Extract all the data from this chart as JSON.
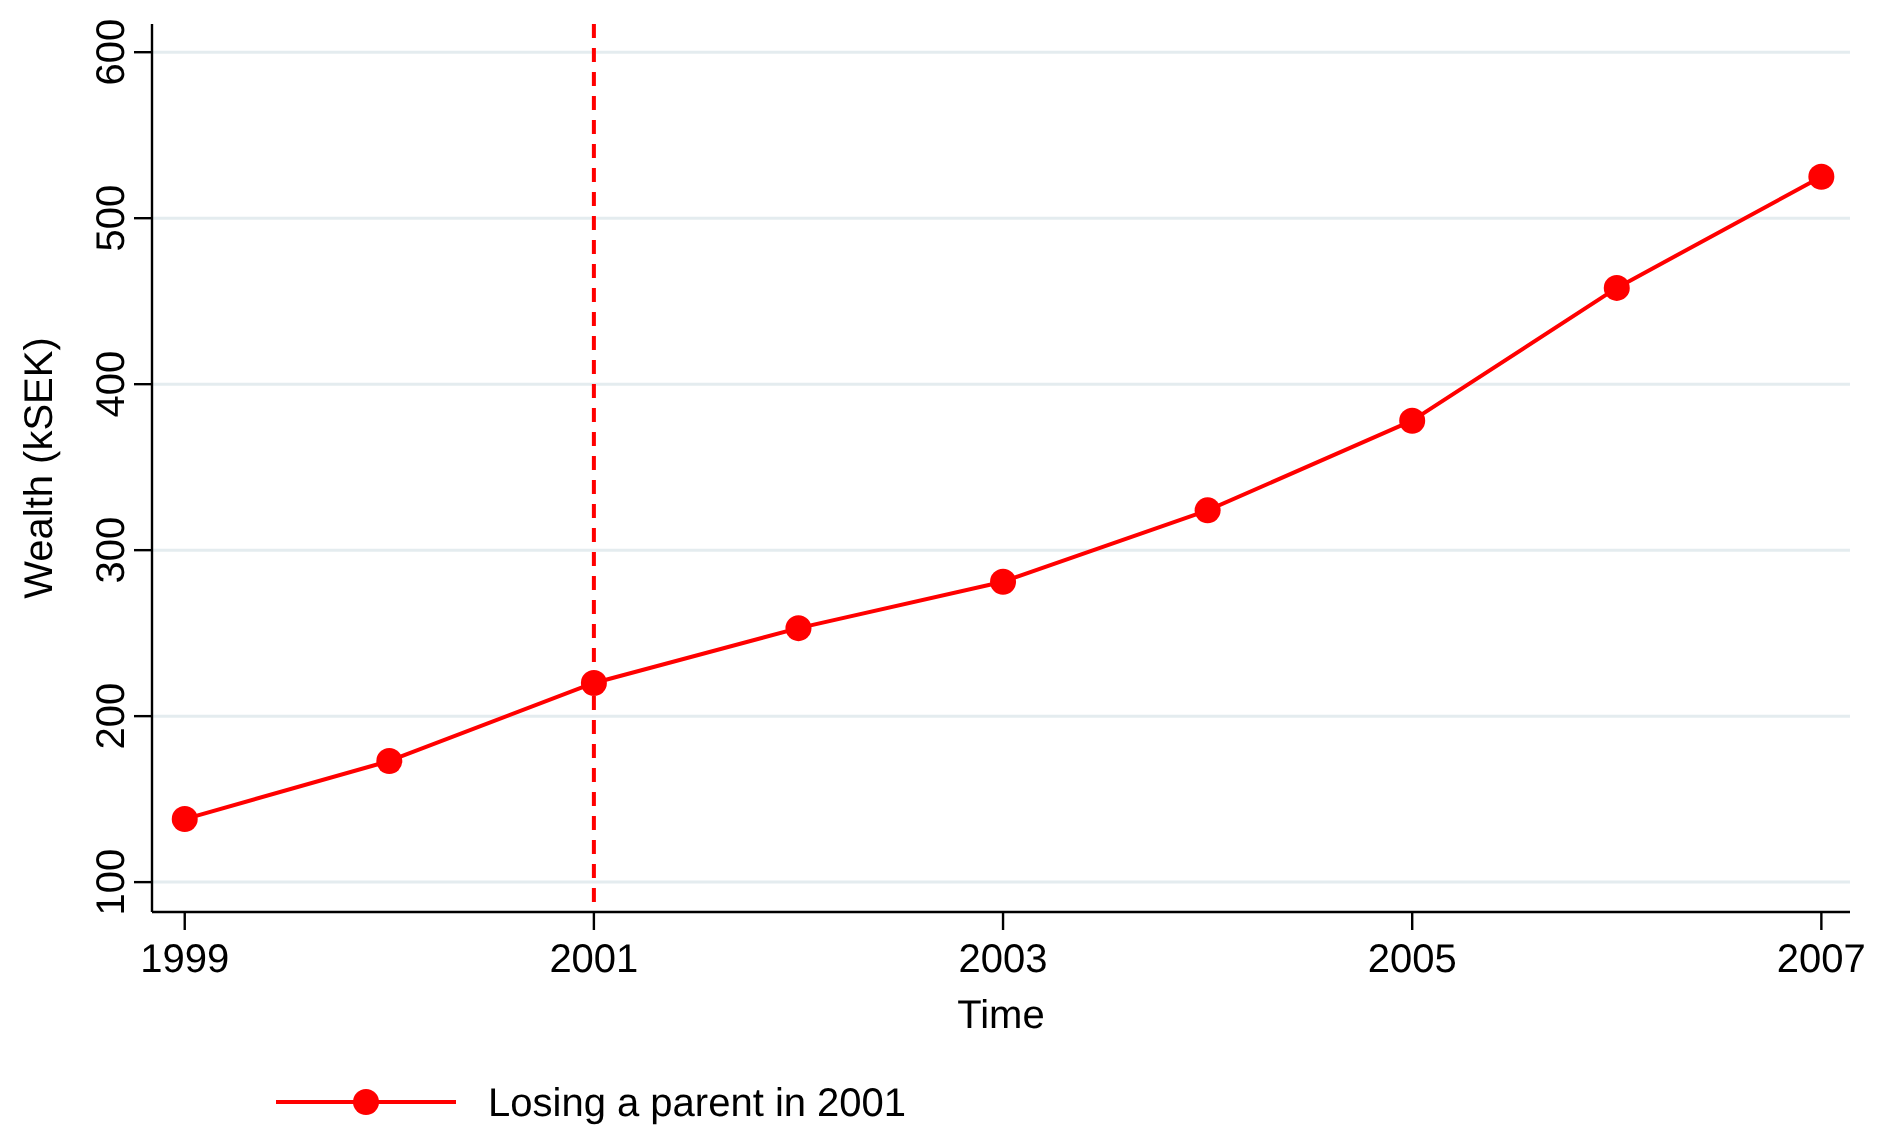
{
  "chart_data": {
    "type": "line",
    "xlabel": "Time",
    "ylabel": "Wealth (kSEK)",
    "x": [
      1999,
      2000,
      2001,
      2002,
      2003,
      2004,
      2005,
      2006,
      2007
    ],
    "series": [
      {
        "name": "Losing a parent in 2001",
        "color": "#ff0000",
        "values": [
          138,
          173,
          220,
          253,
          281,
          324,
          378,
          458,
          525
        ]
      }
    ],
    "xlim": [
      1998.84,
      2007.14
    ],
    "xticks": [
      1999,
      2001,
      2003,
      2005,
      2007
    ],
    "ylim": [
      82,
      617
    ],
    "yticks": [
      100,
      200,
      300,
      400,
      500,
      600
    ],
    "ref_lines": [
      {
        "axis": "x",
        "value": 2001,
        "color": "#ff0000",
        "line_style": "dashed"
      }
    ],
    "grid": "y",
    "legend": "bottom",
    "marker": "circle",
    "line_style": "solid"
  }
}
